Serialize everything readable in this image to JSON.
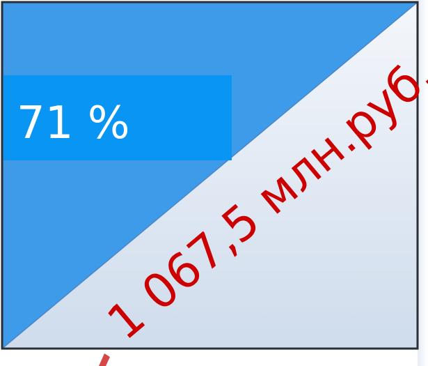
{
  "label": "71 %",
  "amount": "1 067,5 млн.руб."
}
